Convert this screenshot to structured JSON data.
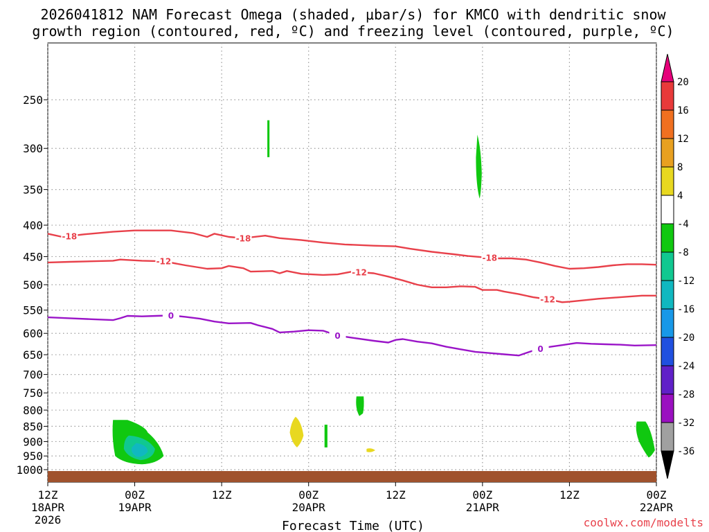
{
  "title_line1": "2026041812 NAM Forecast Omega (shaded, μbar/s) for KMCO with dendritic snow",
  "title_line2": "growth region (contoured, red, ºC) and freezing level (contoured, purple, ºC)",
  "credit": "coolwx.com/modelts",
  "colors": {
    "temp_contour": "#e8404a",
    "freezing_contour": "#9a14c8",
    "ground": "#a0522d",
    "grid": "#999999"
  },
  "chart_data": {
    "type": "heatmap",
    "xlabel": "Forecast Time (UTC)",
    "ylabel": "",
    "x_unit": "hours since 2026-04-18 12Z",
    "xlim": [
      0,
      84
    ],
    "ylim_hpa": [
      200,
      1020
    ],
    "y_ticks": [
      250,
      300,
      350,
      400,
      450,
      500,
      550,
      600,
      650,
      700,
      750,
      800,
      850,
      900,
      950,
      1000
    ],
    "x_ticks": [
      {
        "x": 0,
        "lines": [
          "12Z",
          "18APR",
          "2026"
        ]
      },
      {
        "x": 12,
        "lines": [
          "00Z",
          "19APR"
        ]
      },
      {
        "x": 24,
        "lines": [
          "12Z"
        ]
      },
      {
        "x": 36,
        "lines": [
          "00Z",
          "20APR"
        ]
      },
      {
        "x": 48,
        "lines": [
          "12Z"
        ]
      },
      {
        "x": 60,
        "lines": [
          "00Z",
          "21APR"
        ]
      },
      {
        "x": 72,
        "lines": [
          "12Z"
        ]
      },
      {
        "x": 84,
        "lines": [
          "00Z",
          "22APR"
        ]
      }
    ],
    "colorbar": {
      "unit": "μbar/s",
      "labels": [
        "20",
        "16",
        "12",
        "8",
        "4",
        "-4",
        "-8",
        "-12",
        "-16",
        "-20",
        "-24",
        "-28",
        "-32",
        "-36"
      ],
      "colors": [
        "#e6007a",
        "#e83a3a",
        "#f07020",
        "#e8a020",
        "#e8d820",
        "#ffffff",
        "#10c810",
        "#10c890",
        "#10b8c0",
        "#1898e8",
        "#2050e0",
        "#6020c8",
        "#9a10c0",
        "#a0a0a0",
        "#000000"
      ]
    },
    "series": [
      {
        "name": "-18",
        "color": "#e8404a",
        "points": [
          [
            0,
            413
          ],
          [
            2,
            418
          ],
          [
            5,
            414
          ],
          [
            9,
            410
          ],
          [
            12,
            408
          ],
          [
            17,
            408
          ],
          [
            20,
            412
          ],
          [
            22,
            418
          ],
          [
            23,
            413
          ],
          [
            25,
            418
          ],
          [
            27,
            420
          ],
          [
            30,
            416
          ],
          [
            32,
            420
          ],
          [
            35,
            423
          ],
          [
            38,
            427
          ],
          [
            41,
            430
          ],
          [
            45,
            432
          ],
          [
            48,
            433
          ],
          [
            50,
            437
          ],
          [
            53,
            442
          ],
          [
            56,
            446
          ],
          [
            58,
            449
          ],
          [
            60,
            451
          ],
          [
            62,
            453
          ],
          [
            64,
            453
          ],
          [
            66,
            455
          ],
          [
            68,
            460
          ],
          [
            70,
            466
          ],
          [
            72,
            471
          ],
          [
            74,
            470
          ],
          [
            76,
            468
          ],
          [
            78,
            465
          ],
          [
            80,
            463
          ],
          [
            82,
            463
          ],
          [
            84,
            464
          ]
        ],
        "labels_at": [
          3,
          27,
          61
        ]
      },
      {
        "name": "-12",
        "color": "#e8404a",
        "points": [
          [
            0,
            460
          ],
          [
            3,
            459
          ],
          [
            6,
            458
          ],
          [
            9,
            457
          ],
          [
            10,
            455
          ],
          [
            13,
            457
          ],
          [
            16,
            458
          ],
          [
            19,
            465
          ],
          [
            22,
            471
          ],
          [
            24,
            470
          ],
          [
            25,
            466
          ],
          [
            27,
            470
          ],
          [
            28,
            476
          ],
          [
            31,
            475
          ],
          [
            32,
            479
          ],
          [
            33,
            475
          ],
          [
            35,
            480
          ],
          [
            38,
            482
          ],
          [
            40,
            481
          ],
          [
            42,
            476
          ],
          [
            45,
            479
          ],
          [
            47,
            485
          ],
          [
            49,
            492
          ],
          [
            51,
            500
          ],
          [
            53,
            505
          ],
          [
            55,
            505
          ],
          [
            57,
            503
          ],
          [
            59,
            504
          ],
          [
            60,
            510
          ],
          [
            62,
            510
          ],
          [
            63,
            513
          ],
          [
            65,
            518
          ],
          [
            67,
            524
          ],
          [
            69,
            528
          ],
          [
            71,
            534
          ],
          [
            72,
            533
          ],
          [
            74,
            530
          ],
          [
            76,
            527
          ],
          [
            78,
            525
          ],
          [
            80,
            523
          ],
          [
            82,
            521
          ],
          [
            84,
            521
          ]
        ],
        "labels_at": [
          16,
          43,
          69
        ]
      },
      {
        "name": "0",
        "color": "#9a14c8",
        "points": [
          [
            0,
            565
          ],
          [
            3,
            567
          ],
          [
            6,
            569
          ],
          [
            9,
            571
          ],
          [
            10,
            567
          ],
          [
            11,
            562
          ],
          [
            13,
            563
          ],
          [
            15,
            562
          ],
          [
            17,
            561
          ],
          [
            19,
            564
          ],
          [
            21,
            568
          ],
          [
            23,
            574
          ],
          [
            25,
            578
          ],
          [
            28,
            577
          ],
          [
            29,
            582
          ],
          [
            31,
            590
          ],
          [
            32,
            598
          ],
          [
            34,
            596
          ],
          [
            36,
            593
          ],
          [
            38,
            594
          ],
          [
            40,
            605
          ],
          [
            42,
            610
          ],
          [
            45,
            617
          ],
          [
            47,
            621
          ],
          [
            48,
            615
          ],
          [
            49,
            613
          ],
          [
            51,
            619
          ],
          [
            53,
            623
          ],
          [
            55,
            631
          ],
          [
            57,
            637
          ],
          [
            59,
            643
          ],
          [
            61,
            646
          ],
          [
            63,
            649
          ],
          [
            65,
            652
          ],
          [
            67,
            640
          ],
          [
            69,
            632
          ],
          [
            71,
            627
          ],
          [
            73,
            622
          ],
          [
            75,
            624
          ],
          [
            77,
            625
          ],
          [
            79,
            626
          ],
          [
            81,
            628
          ],
          [
            84,
            627
          ]
        ],
        "labels_at": [
          17,
          40,
          68
        ]
      }
    ]
  }
}
